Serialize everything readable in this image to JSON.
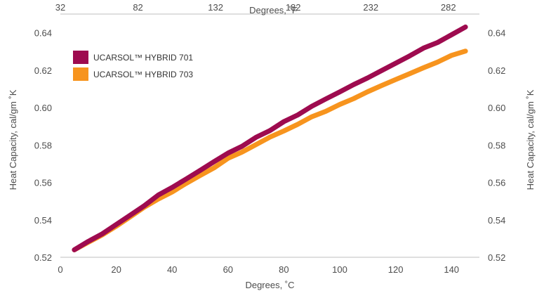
{
  "chart_data": {
    "type": "line",
    "xlabel": "Degrees, ˚C",
    "x2label": "Degrees, ˚F",
    "ylabel": "Heat Capacity, cal/gm ˚K",
    "y2label": "Heat Capacity, cal/gm ˚K",
    "xlim": [
      0,
      150
    ],
    "ylim": [
      0.52,
      0.65
    ],
    "x2lim": [
      32,
      302
    ],
    "x_ticks": [
      0,
      20,
      40,
      60,
      80,
      100,
      120,
      140
    ],
    "x2_ticks": [
      32,
      82,
      132,
      182,
      232,
      282
    ],
    "y_ticks": [
      0.52,
      0.54,
      0.56,
      0.58,
      0.6,
      0.62,
      0.64
    ],
    "y_tick_labels": [
      "0.52",
      "0.54",
      "0.56",
      "0.58",
      "0.60",
      "0.62",
      "0.64"
    ],
    "grid": false,
    "legend": "top-left",
    "series": [
      {
        "name": "UCARSOL™ HYBRID 701",
        "color": "#9e0b4f",
        "x": [
          5,
          10,
          15,
          20,
          25,
          30,
          35,
          40,
          45,
          50,
          55,
          60,
          65,
          70,
          75,
          80,
          85,
          90,
          95,
          100,
          105,
          110,
          115,
          120,
          125,
          130,
          135,
          140,
          145
        ],
        "y": [
          0.524,
          0.5285,
          0.5325,
          0.5375,
          0.5425,
          0.5475,
          0.5532,
          0.5573,
          0.5618,
          0.5664,
          0.5711,
          0.5757,
          0.5793,
          0.5841,
          0.5877,
          0.5925,
          0.5961,
          0.6007,
          0.6046,
          0.6084,
          0.6123,
          0.6159,
          0.6198,
          0.6237,
          0.6276,
          0.6318,
          0.6348,
          0.6389,
          0.6431
        ]
      },
      {
        "name": "UCARSOL™ HYBRID 703",
        "color": "#f7941e",
        "x": [
          5,
          10,
          15,
          20,
          25,
          30,
          35,
          40,
          45,
          50,
          55,
          60,
          65,
          70,
          75,
          80,
          85,
          90,
          95,
          100,
          105,
          110,
          115,
          120,
          125,
          130,
          135,
          140,
          145
        ],
        "y": [
          0.524,
          0.528,
          0.532,
          0.5366,
          0.5416,
          0.5467,
          0.5511,
          0.5549,
          0.5595,
          0.5637,
          0.5678,
          0.5729,
          0.5762,
          0.5802,
          0.5842,
          0.5875,
          0.5911,
          0.5951,
          0.598,
          0.6017,
          0.6048,
          0.6085,
          0.6118,
          0.615,
          0.6181,
          0.6213,
          0.6243,
          0.6279,
          0.6302
        ]
      }
    ]
  }
}
